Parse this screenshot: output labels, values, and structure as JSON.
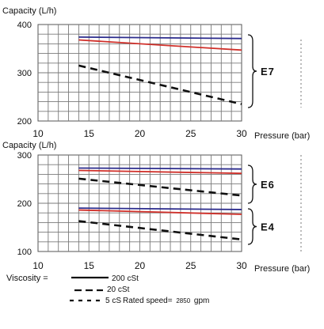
{
  "chart_data": [
    {
      "type": "line",
      "ylabel": "Capacity (L/h)",
      "xlabel": "Pressure (bar)",
      "xlim": [
        10,
        30
      ],
      "ylim": [
        200,
        400
      ],
      "x_ticks": [
        "10",
        "15",
        "20",
        "25",
        "30"
      ],
      "y_ticks": [
        "200",
        "300",
        "400"
      ],
      "grid": true,
      "groups": [
        {
          "label": "E7",
          "series": [
            {
              "viscosity": "200 cSt",
              "color": "#2b2b8c",
              "dash": "solid",
              "x": [
                14,
                30
              ],
              "y": [
                374,
                371
              ]
            },
            {
              "viscosity": "20 cSt",
              "color": "#d0302a",
              "dash": "solid",
              "x": [
                14,
                30
              ],
              "y": [
                368,
                347
              ]
            },
            {
              "viscosity": "5 cS",
              "color": "#111111",
              "dash": "dashed",
              "x": [
                14,
                30
              ],
              "y": [
                315,
                235
              ]
            }
          ]
        }
      ]
    },
    {
      "type": "line",
      "ylabel": "Capacity (L/h)",
      "xlabel": "Pressure (bar)",
      "xlim": [
        10,
        30
      ],
      "ylim": [
        100,
        300
      ],
      "x_ticks": [
        "10",
        "15",
        "20",
        "25",
        "30"
      ],
      "y_ticks": [
        "100",
        "200",
        "300"
      ],
      "grid": true,
      "groups": [
        {
          "label": "E6",
          "series": [
            {
              "viscosity": "200 cSt",
              "color": "#2b2b8c",
              "dash": "solid",
              "x": [
                14,
                30
              ],
              "y": [
                273,
                271
              ]
            },
            {
              "viscosity": "20 cSt",
              "color": "#d0302a",
              "dash": "solid",
              "x": [
                14,
                30
              ],
              "y": [
                268,
                262
              ]
            },
            {
              "viscosity": "5 cS",
              "color": "#111111",
              "dash": "dashed",
              "x": [
                14,
                30
              ],
              "y": [
                251,
                216
              ]
            }
          ]
        },
        {
          "label": "E4",
          "series": [
            {
              "viscosity": "200 cSt",
              "color": "#2b2b8c",
              "dash": "solid",
              "x": [
                14,
                30
              ],
              "y": [
                190,
                187
              ]
            },
            {
              "viscosity": "20 cSt",
              "color": "#d0302a",
              "dash": "solid",
              "x": [
                14,
                30
              ],
              "y": [
                186,
                177
              ]
            },
            {
              "viscosity": "5 cS",
              "color": "#111111",
              "dash": "dashed",
              "x": [
                14,
                30
              ],
              "y": [
                163,
                125
              ]
            }
          ]
        }
      ]
    }
  ],
  "legend": {
    "title": "Viscosity =",
    "items": [
      "200 cSt",
      "20 cSt",
      "5 cS"
    ],
    "rated_speed_label": "Rated speed=",
    "rated_speed_value": "2850",
    "rated_speed_unit": "gpm"
  }
}
